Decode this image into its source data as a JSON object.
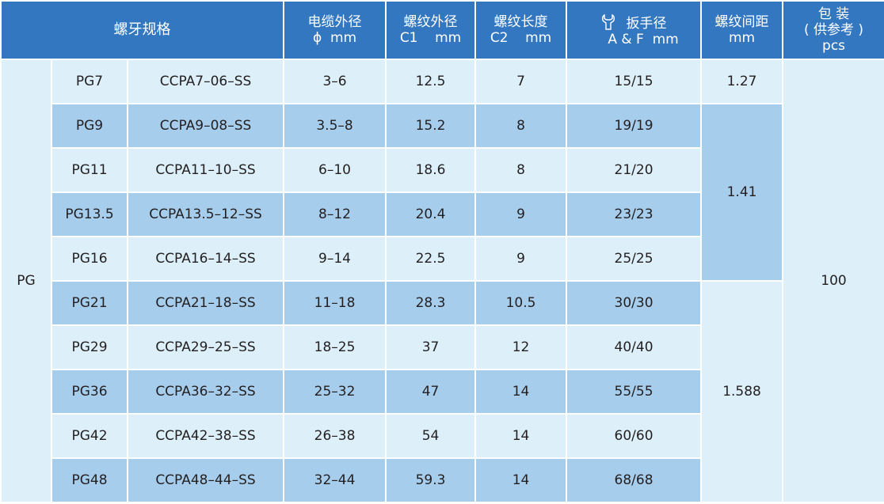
{
  "header": {
    "spec": "螺牙规格",
    "cable_od": {
      "line1": "电缆外径",
      "line2": "ϕ  mm"
    },
    "thread_od": {
      "line1": "螺纹外径",
      "line2": "C1    mm"
    },
    "thread_len": {
      "line1": "螺纹长度",
      "line2": "C2    mm"
    },
    "wrench": {
      "line1": "扳手径",
      "line2": "A & F  mm",
      "icon": "wrench-icon"
    },
    "pitch": {
      "line1": "螺纹间距",
      "line2": "mm"
    },
    "pack": {
      "line1": "包 装",
      "line2": "( 供参考 )",
      "line3": "pcs"
    }
  },
  "group_label": "PG",
  "package_qty": "100",
  "pitch_values": [
    "1.27",
    "1.41",
    "1.588"
  ],
  "rows": [
    {
      "pg": "PG7",
      "model": "CCPA7–06–SS",
      "cable": "3–6",
      "c1": "12.5",
      "c2": "7",
      "af": "15/15"
    },
    {
      "pg": "PG9",
      "model": "CCPA9–08–SS",
      "cable": "3.5–8",
      "c1": "15.2",
      "c2": "8",
      "af": "19/19"
    },
    {
      "pg": "PG11",
      "model": "CCPA11–10–SS",
      "cable": "6–10",
      "c1": "18.6",
      "c2": "8",
      "af": "21/20"
    },
    {
      "pg": "PG13.5",
      "model": "CCPA13.5–12–SS",
      "cable": "8–12",
      "c1": "20.4",
      "c2": "9",
      "af": "23/23"
    },
    {
      "pg": "PG16",
      "model": "CCPA16–14–SS",
      "cable": "9–14",
      "c1": "22.5",
      "c2": "9",
      "af": "25/25"
    },
    {
      "pg": "PG21",
      "model": "CCPA21–18–SS",
      "cable": "11–18",
      "c1": "28.3",
      "c2": "10.5",
      "af": "30/30"
    },
    {
      "pg": "PG29",
      "model": "CCPA29–25–SS",
      "cable": "18–25",
      "c1": "37",
      "c2": "12",
      "af": "40/40"
    },
    {
      "pg": "PG36",
      "model": "CCPA36–32–SS",
      "cable": "25–32",
      "c1": "47",
      "c2": "14",
      "af": "55/55"
    },
    {
      "pg": "PG42",
      "model": "CCPA42–38–SS",
      "cable": "26–38",
      "c1": "54",
      "c2": "14",
      "af": "60/60"
    },
    {
      "pg": "PG48",
      "model": "CCPA48–44–SS",
      "cable": "32–44",
      "c1": "59.3",
      "c2": "14",
      "af": "68/68"
    }
  ]
}
